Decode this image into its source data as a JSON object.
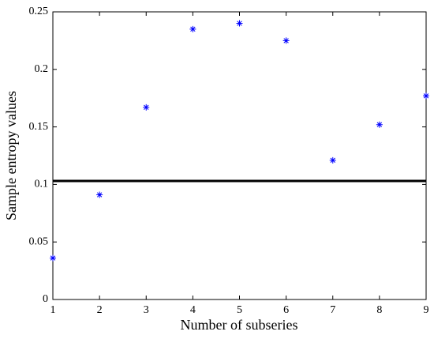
{
  "chart_data": {
    "type": "scatter",
    "xlabel": "Number of subseries",
    "ylabel": "Sample entropy values",
    "x": [
      1,
      2,
      3,
      4,
      5,
      6,
      7,
      8,
      9
    ],
    "series": [
      {
        "color": "#0000ff",
        "values": [
          0.036,
          0.091,
          0.167,
          0.235,
          0.24,
          0.225,
          0.121,
          0.152,
          0.177
        ]
      }
    ],
    "threshold": 0.103,
    "threshold_color": "#000000",
    "xlim": [
      1,
      9
    ],
    "xticks": [
      1,
      2,
      3,
      4,
      5,
      6,
      7,
      8,
      9
    ],
    "ylim": [
      0,
      0.25
    ],
    "yticks": [
      0,
      0.05,
      0.1,
      0.15,
      0.2,
      0.25
    ],
    "grid": false
  }
}
